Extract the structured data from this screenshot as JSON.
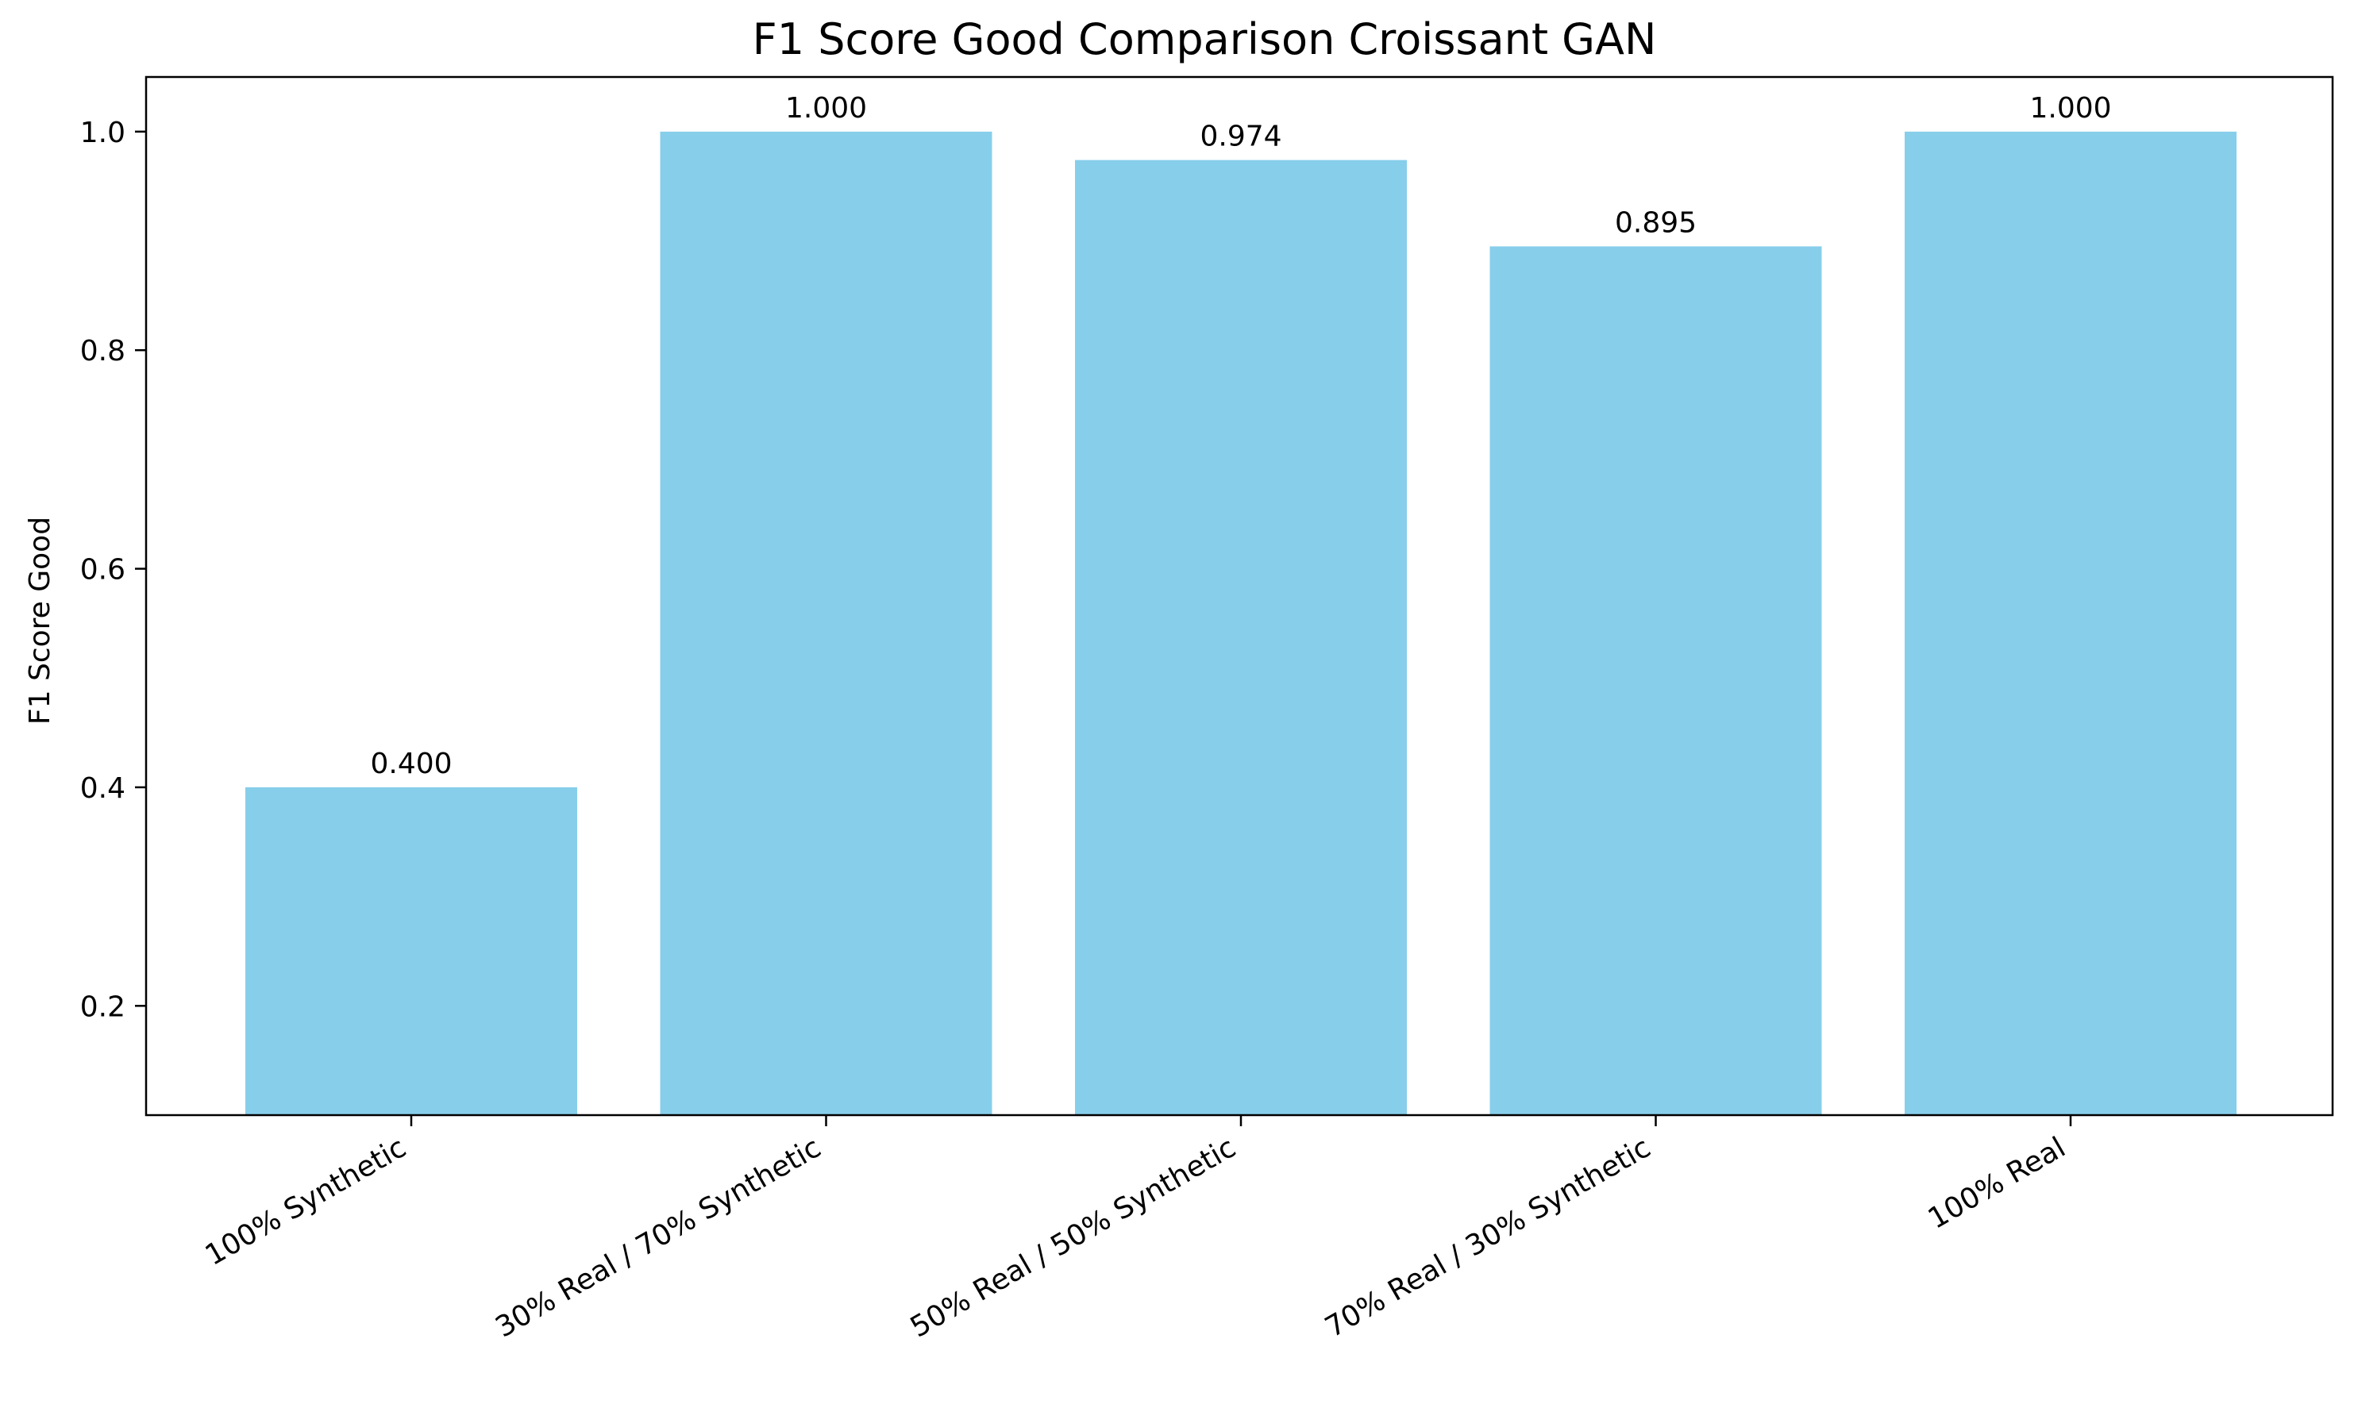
{
  "chart_data": {
    "type": "bar",
    "title": "F1 Score Good Comparison Croissant GAN",
    "xlabel": "",
    "ylabel": "F1 Score Good",
    "categories": [
      "100% Synthetic",
      "30% Real / 70% Synthetic",
      "50% Real / 50% Synthetic",
      "70% Real / 30% Synthetic",
      "100% Real"
    ],
    "values": [
      0.4,
      1.0,
      0.974,
      0.895,
      1.0
    ],
    "value_labels": [
      "0.400",
      "1.000",
      "0.974",
      "0.895",
      "1.000"
    ],
    "ylim": [
      0.1,
      1.05
    ],
    "yticks": [
      0.2,
      0.4,
      0.6,
      0.8,
      1.0
    ],
    "ytick_labels": [
      "0.2",
      "0.4",
      "0.6",
      "0.8",
      "1.0"
    ],
    "grid": false,
    "legend": "none",
    "bar_color": "#87ceeb"
  }
}
